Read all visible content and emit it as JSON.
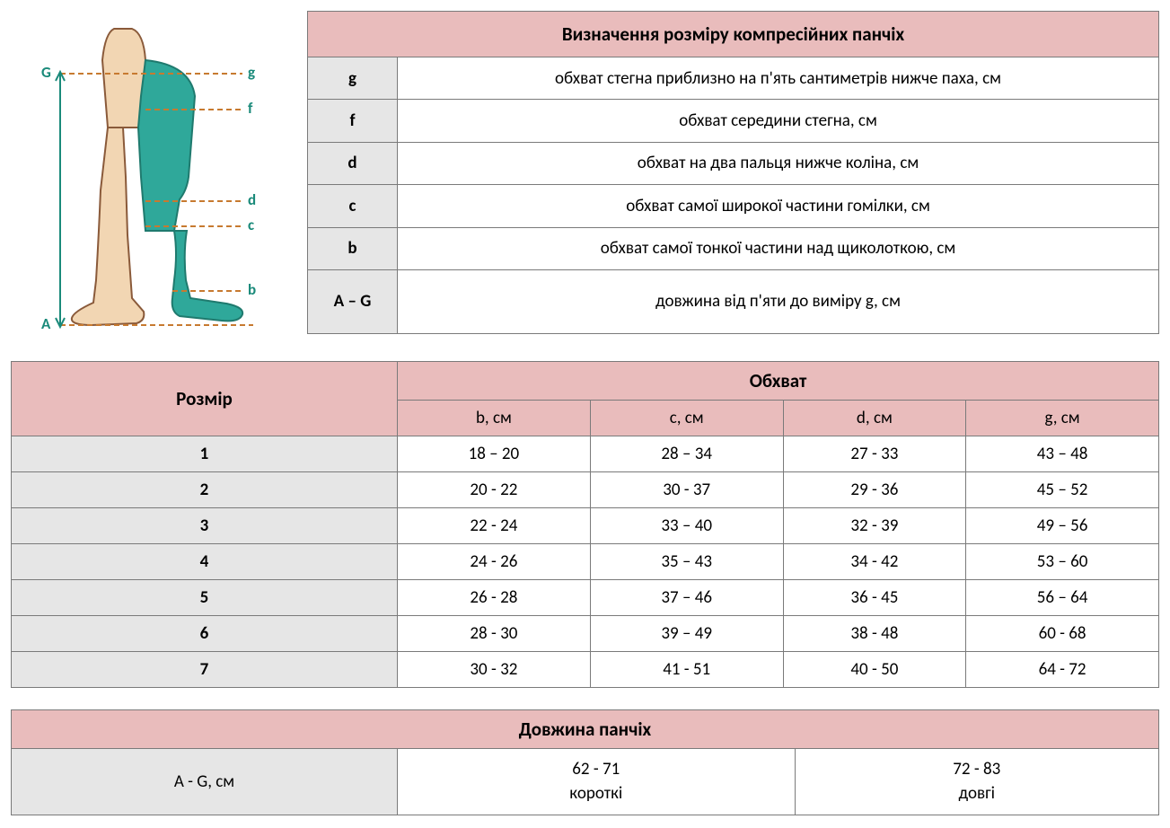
{
  "colors": {
    "header_bg": "#e9bcbc",
    "key_bg": "#e6e6e6",
    "border": "#7a7a7a",
    "text": "#000000",
    "leg_skin": "#f2d6b3",
    "leg_stocking": "#2fa89a",
    "leg_outline": "#8a5a3a",
    "label_color": "#1a8a7a",
    "guide_line": "#c77a30"
  },
  "diagram": {
    "labels": {
      "G": "G",
      "A": "A",
      "g": "g",
      "f": "f",
      "d": "d",
      "c": "c",
      "b": "b"
    }
  },
  "definitions": {
    "title": "Визначення розміру компресійних панчіх",
    "rows": [
      {
        "key": "g",
        "desc": "обхват стегна приблизно на п'ять сантиметрів нижче паха, см"
      },
      {
        "key": "f",
        "desc": "обхват середини стегна, см"
      },
      {
        "key": "d",
        "desc": "обхват на два пальця нижче коліна, см"
      },
      {
        "key": "c",
        "desc": "обхват самої широкої частини гомілки, см"
      },
      {
        "key": "b",
        "desc": "обхват самої тонкої частини над щиколоткою, см"
      },
      {
        "key": "A – G",
        "desc": "довжина від п'яти до виміру g, см"
      }
    ]
  },
  "size_table": {
    "size_header": "Розмір",
    "circ_header": "Обхват",
    "columns": [
      "b, см",
      "c, см",
      "d, см",
      "g, см"
    ],
    "rows": [
      {
        "size": "1",
        "b": "18 – 20",
        "c": "28 – 34",
        "d": "27 - 33",
        "g": "43 – 48"
      },
      {
        "size": "2",
        "b": "20 - 22",
        "c": "30 - 37",
        "d": "29 - 36",
        "g": "45 – 52"
      },
      {
        "size": "3",
        "b": "22 - 24",
        "c": "33 – 40",
        "d": "32 - 39",
        "g": "49 – 56"
      },
      {
        "size": "4",
        "b": "24 - 26",
        "c": "35 – 43",
        "d": "34 - 42",
        "g": "53 – 60"
      },
      {
        "size": "5",
        "b": "26 - 28",
        "c": "37 – 46",
        "d": "36 - 45",
        "g": "56 – 64"
      },
      {
        "size": "6",
        "b": "28 - 30",
        "c": "39 – 49",
        "d": "38 - 48",
        "g": "60 - 68"
      },
      {
        "size": "7",
        "b": "30 - 32",
        "c": "41 - 51",
        "d": "40 - 50",
        "g": "64 - 72"
      }
    ]
  },
  "length_table": {
    "title": "Довжина панчіх",
    "row_label": "A - G, см",
    "short_range": "62 - 71",
    "short_label": "короткі",
    "long_range": "72 - 83",
    "long_label": "довгі"
  }
}
